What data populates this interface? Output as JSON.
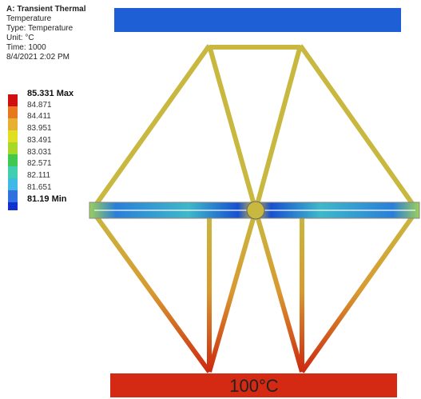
{
  "header": {
    "title": "A: Transient Thermal",
    "lines": [
      "Temperature",
      "Type: Temperature",
      "Unit: °C",
      "Time: 1000",
      "8/4/2021 2:02 PM"
    ]
  },
  "legend": {
    "labels": [
      "85.331 Max",
      "84.871",
      "84.411",
      "83.951",
      "83.491",
      "83.031",
      "82.571",
      "82.111",
      "81.651",
      "81.19 Min"
    ]
  },
  "model": {
    "bottom_label": "100°C"
  }
}
